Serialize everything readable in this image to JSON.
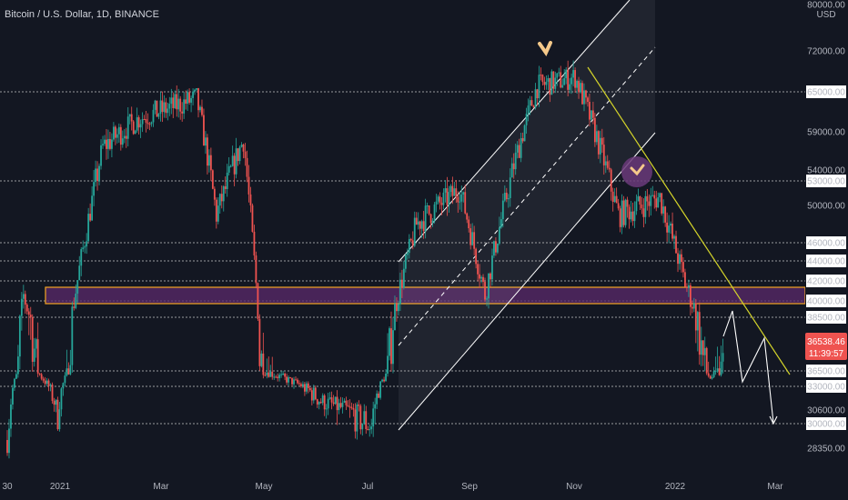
{
  "chart_title": "Bitcoin / U.S. Dollar, 1D, BINANCE",
  "currency": "USD",
  "colors": {
    "background": "#131722",
    "up_candle": "#26a69a",
    "down_candle": "#ef5350",
    "zone_fill": "#5b2a6b",
    "zone_border": "#f5a623",
    "trendline": "#d4d42a",
    "channel": "#ffffff",
    "last_price_bg": "#ef5350",
    "arrow_marker": "#f5c98a"
  },
  "chart_data": {
    "type": "candlestick",
    "title": "Bitcoin / U.S. Dollar, 1D, BINANCE",
    "y_ticks": [
      "80000.00",
      "72000.00",
      "65000.00",
      "59000.00",
      "54000.00",
      "53000.00",
      "50000.00",
      "46000.00",
      "44000.00",
      "42000.00",
      "40000.00",
      "38500.00",
      "36500.00",
      "33000.00",
      "30600.00",
      "30000.00",
      "28350.00"
    ],
    "x_ticks": [
      "30",
      "2021",
      "Mar",
      "May",
      "Jul",
      "Sep",
      "Nov",
      "2022",
      "Mar"
    ],
    "horizontal_levels": [
      65000,
      53000,
      46000,
      44000,
      42000,
      40000,
      38500,
      36500,
      33000,
      30000
    ],
    "last_price": "36538.46",
    "countdown": "11:39:57",
    "resistance_zone": [
      39500,
      41000
    ],
    "ylim": [
      27500,
      81000
    ],
    "approx_closes": [
      {
        "date": "2020-12-30",
        "close": 28900
      },
      {
        "date": "2021-01-08",
        "close": 40500
      },
      {
        "date": "2021-01-27",
        "close": 30400
      },
      {
        "date": "2021-02-21",
        "close": 57000
      },
      {
        "date": "2021-03-13",
        "close": 61000
      },
      {
        "date": "2021-04-14",
        "close": 64000
      },
      {
        "date": "2021-04-25",
        "close": 49000
      },
      {
        "date": "2021-05-10",
        "close": 58000
      },
      {
        "date": "2021-05-19",
        "close": 37000
      },
      {
        "date": "2021-06-22",
        "close": 31500
      },
      {
        "date": "2021-07-20",
        "close": 29800
      },
      {
        "date": "2021-08-14",
        "close": 48000
      },
      {
        "date": "2021-09-07",
        "close": 52000
      },
      {
        "date": "2021-09-21",
        "close": 40600
      },
      {
        "date": "2021-10-20",
        "close": 66000
      },
      {
        "date": "2021-11-10",
        "close": 67500
      },
      {
        "date": "2021-12-04",
        "close": 49000
      },
      {
        "date": "2021-12-27",
        "close": 51000
      },
      {
        "date": "2022-01-10",
        "close": 41800
      },
      {
        "date": "2022-01-24",
        "close": 35000
      },
      {
        "date": "2022-01-31",
        "close": 36538
      }
    ]
  }
}
